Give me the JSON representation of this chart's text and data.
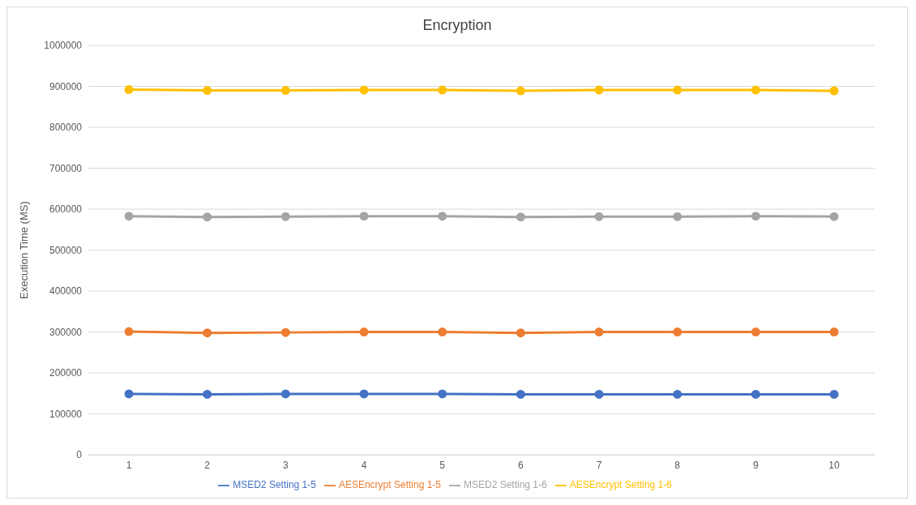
{
  "chart_data": {
    "type": "line",
    "title": "Encryption",
    "ylabel": "Execution Time (MS)",
    "categories": [
      "1",
      "2",
      "3",
      "4",
      "5",
      "6",
      "7",
      "8",
      "9",
      "10"
    ],
    "series": [
      {
        "name": "MSED2 Setting 1-5",
        "color": "#4472c4",
        "values": [
          149000,
          148000,
          149000,
          149000,
          149000,
          148000,
          148000,
          148000,
          148000,
          148000
        ]
      },
      {
        "name": "AESEncrypt Setting 1-5",
        "color": "#ed7d31",
        "values": [
          301000,
          298000,
          299000,
          300000,
          300000,
          298000,
          300000,
          300000,
          300000,
          300000
        ]
      },
      {
        "name": "MSED2 Setting 1-6",
        "color": "#a5a5a5",
        "values": [
          583000,
          581000,
          582000,
          583000,
          583000,
          581000,
          582000,
          582000,
          583000,
          582000
        ]
      },
      {
        "name": "AESEncrypt Setting 1-6",
        "color": "#ffc000",
        "values": [
          892000,
          890000,
          890000,
          891000,
          891000,
          889000,
          891000,
          891000,
          891000,
          889000
        ]
      }
    ],
    "ylim": [
      0,
      1000000
    ],
    "yticks": [
      0,
      100000,
      200000,
      300000,
      400000,
      500000,
      600000,
      700000,
      800000,
      900000,
      1000000
    ],
    "grid": "y",
    "legend": "bottom",
    "marker": "circle",
    "line_style": "solid"
  }
}
